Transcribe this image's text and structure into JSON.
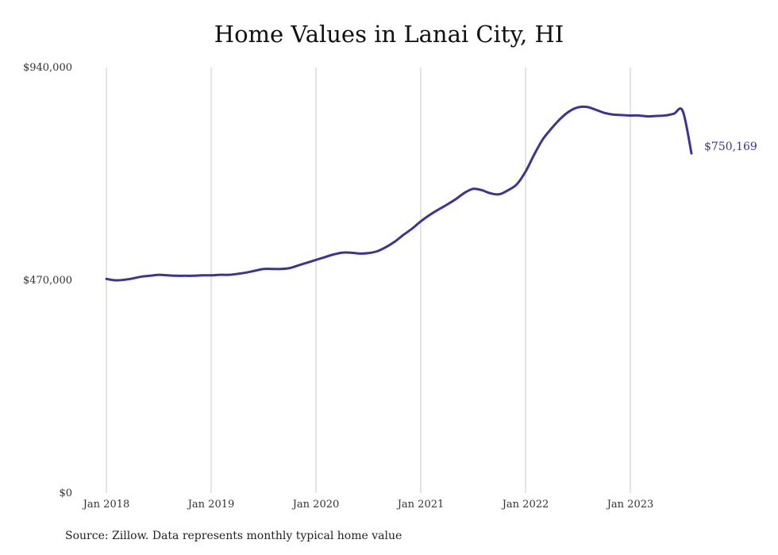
{
  "chart_data": {
    "type": "line",
    "title": "Home Values in Lanai City, HI",
    "xlabel": "",
    "ylabel": "",
    "source_note": "Source: Zillow. Data represents monthly typical home value",
    "x_ticks": [
      "Jan 2018",
      "Jan 2019",
      "Jan 2020",
      "Jan 2021",
      "Jan 2022",
      "Jan 2023"
    ],
    "y_ticks": [
      "$0",
      "$470,000",
      "$940,000"
    ],
    "ylim": [
      0,
      940000
    ],
    "xlim": [
      "2018-01",
      "2023-08"
    ],
    "grid": "vertical",
    "line_color": "#3d3393",
    "end_label": "$750,169",
    "series": [
      {
        "x": [
          "2018-01",
          "2018-02",
          "2018-03",
          "2018-04",
          "2018-05",
          "2018-06",
          "2018-07",
          "2018-08",
          "2018-09",
          "2018-10",
          "2018-11",
          "2018-12",
          "2019-01",
          "2019-02",
          "2019-03",
          "2019-04",
          "2019-05",
          "2019-06",
          "2019-07",
          "2019-08",
          "2019-09",
          "2019-10",
          "2019-11",
          "2019-12",
          "2020-01",
          "2020-02",
          "2020-03",
          "2020-04",
          "2020-05",
          "2020-06",
          "2020-07",
          "2020-08",
          "2020-09",
          "2020-10",
          "2020-11",
          "2020-12",
          "2021-01",
          "2021-02",
          "2021-03",
          "2021-04",
          "2021-05",
          "2021-06",
          "2021-07",
          "2021-08",
          "2021-09",
          "2021-10",
          "2021-11",
          "2021-12",
          "2022-01",
          "2022-02",
          "2022-03",
          "2022-04",
          "2022-05",
          "2022-06",
          "2022-07",
          "2022-08",
          "2022-09",
          "2022-10",
          "2022-11",
          "2022-12",
          "2023-01",
          "2023-02",
          "2023-03",
          "2023-04",
          "2023-05",
          "2023-06",
          "2023-07",
          "2023-08"
        ],
        "values": [
          473000,
          470000,
          471000,
          474000,
          478000,
          480000,
          482000,
          481000,
          480000,
          480000,
          480000,
          481000,
          481000,
          482000,
          482000,
          484000,
          487000,
          491000,
          495000,
          495000,
          495000,
          497000,
          503000,
          509000,
          515000,
          521000,
          527000,
          531000,
          531000,
          529000,
          530000,
          534000,
          543000,
          555000,
          570000,
          584000,
          600000,
          614000,
          626000,
          637000,
          649000,
          663000,
          672000,
          669000,
          662000,
          660000,
          669000,
          682000,
          710000,
          748000,
          782000,
          806000,
          827000,
          843000,
          852000,
          853000,
          847000,
          840000,
          836000,
          835000,
          834000,
          834000,
          832000,
          833000,
          834000,
          838000,
          844000,
          750169
        ]
      }
    ]
  }
}
